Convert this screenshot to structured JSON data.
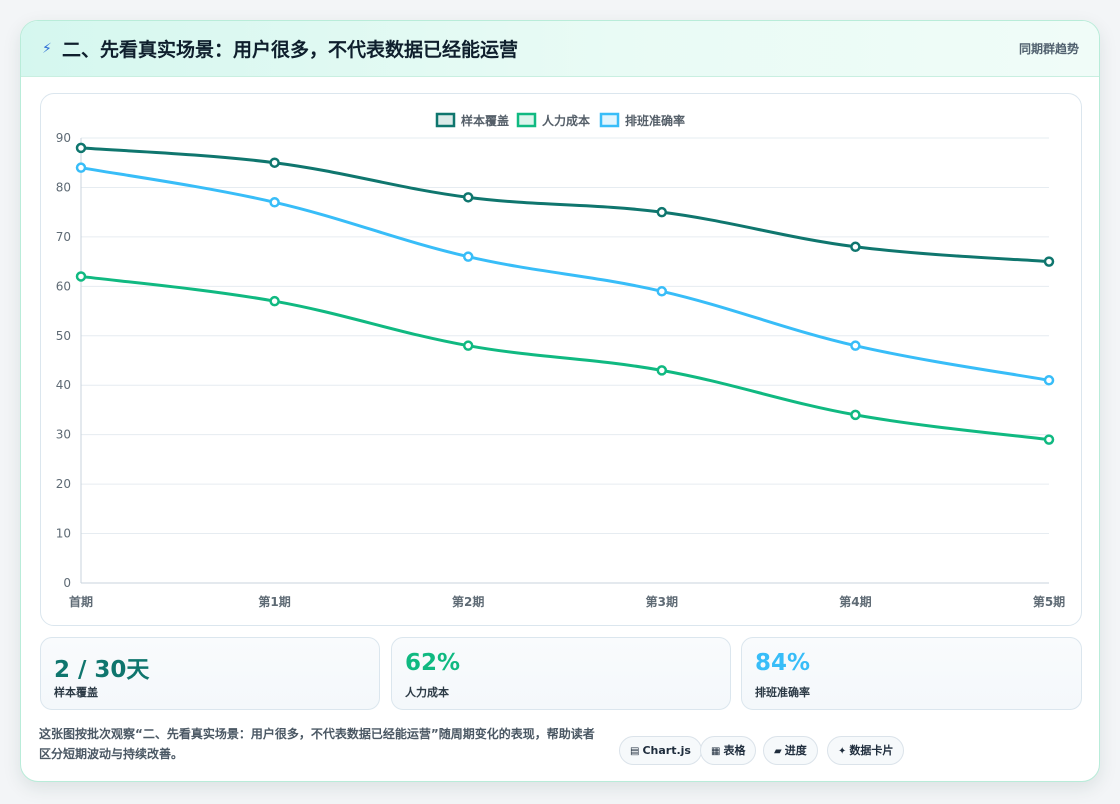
{
  "header": {
    "icon": "lightning-icon",
    "title": "二、先看真实场景：用户很多，不代表数据已经能运营",
    "tag": "同期群趋势"
  },
  "chart_data": {
    "type": "line",
    "categories": [
      "首期",
      "第1期",
      "第2期",
      "第3期",
      "第4期",
      "第5期"
    ],
    "ylim": [
      0,
      90
    ],
    "yticks": [
      0,
      10,
      20,
      30,
      40,
      50,
      60,
      70,
      80,
      90
    ],
    "grid": true,
    "legend_position": "top-center",
    "series": [
      {
        "name": "样本覆盖",
        "color": "#0f766e",
        "values": [
          88,
          85,
          78,
          75,
          68,
          65
        ]
      },
      {
        "name": "人力成本",
        "color": "#10b981",
        "values": [
          62,
          57,
          48,
          43,
          34,
          29
        ]
      },
      {
        "name": "排班准确率",
        "color": "#38bdf8",
        "values": [
          84,
          77,
          66,
          59,
          48,
          41
        ]
      }
    ]
  },
  "stats": [
    {
      "value": "2 / 30天",
      "label": "样本覆盖",
      "color": "#0f766e"
    },
    {
      "value": "62%",
      "label": "人力成本",
      "color": "#10b981"
    },
    {
      "value": "84%",
      "label": "排班准确率",
      "color": "#38bdf8"
    }
  ],
  "footer": {
    "text": "这张图按批次观察“二、先看真实场景：用户很多，不代表数据已经能运营”随周期变化的表现，帮助读者区分短期波动与持续改善。",
    "pills": [
      {
        "icon": "chart-icon",
        "glyph": "▤",
        "label": "Chart.js"
      },
      {
        "icon": "table-icon",
        "glyph": "▦",
        "label": "表格"
      },
      {
        "icon": "progress-icon",
        "glyph": "▰",
        "label": "进度"
      },
      {
        "icon": "sparkle-icon",
        "glyph": "✦",
        "label": "数据卡片"
      }
    ]
  }
}
